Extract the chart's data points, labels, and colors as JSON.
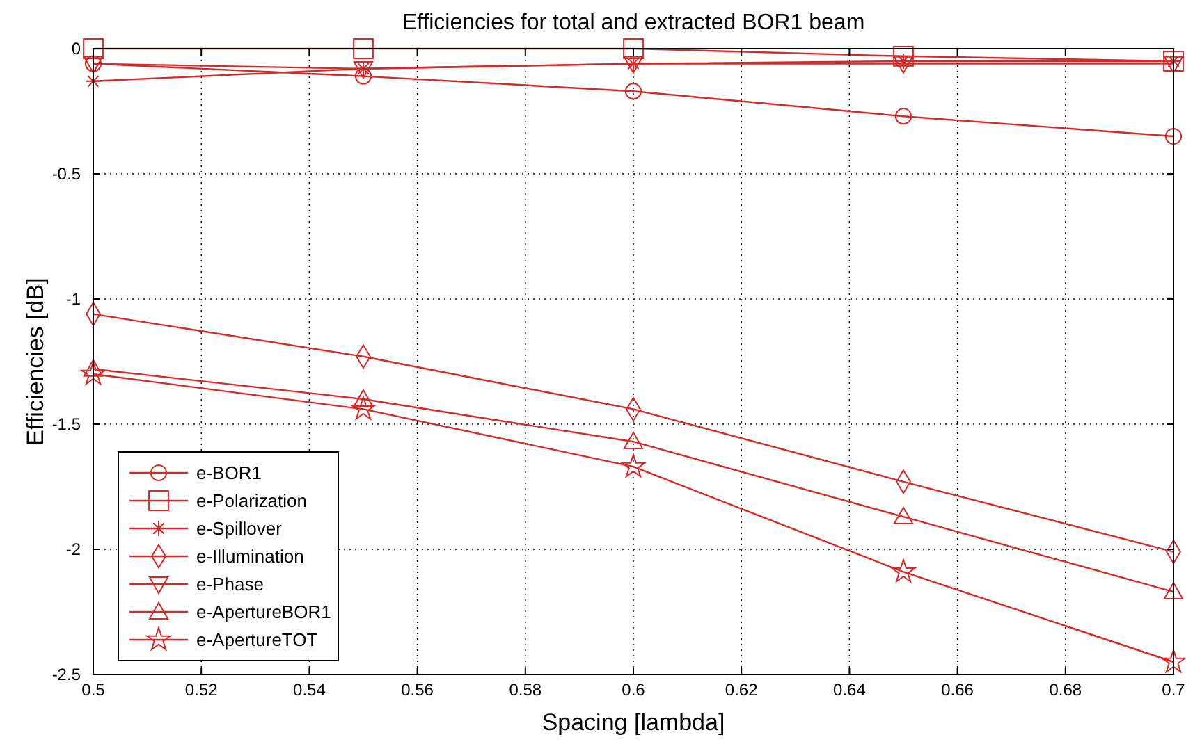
{
  "chart_data": {
    "type": "line",
    "title": "Efficiencies for total and extracted BOR1 beam",
    "xlabel": "Spacing [lambda]",
    "ylabel": "Efficiencies [dB]",
    "x": [
      0.5,
      0.55,
      0.6,
      0.65,
      0.7
    ],
    "series": [
      {
        "name": "e-BOR1",
        "color": "#d42a2a",
        "marker": "circle",
        "values": [
          -0.06,
          -0.11,
          -0.17,
          -0.27,
          -0.35
        ]
      },
      {
        "name": "e-Polarization",
        "color": "#d42a2a",
        "marker": "square",
        "values": [
          0,
          0,
          0,
          -0.03,
          -0.05
        ]
      },
      {
        "name": "e-Spillover",
        "color": "#d42a2a",
        "marker": "cross",
        "values": [
          -0.13,
          -0.08,
          -0.06,
          -0.05,
          -0.05
        ]
      },
      {
        "name": "e-Illumination",
        "color": "#d42a2a",
        "marker": "diamond",
        "values": [
          -1.06,
          -1.23,
          -1.44,
          -1.73,
          -2.01
        ]
      },
      {
        "name": "e-Phase",
        "color": "#d42a2a",
        "marker": "triangle-down",
        "values": [
          -0.06,
          -0.08,
          -0.06,
          -0.06,
          -0.06
        ]
      },
      {
        "name": "e-ApertureBOR1",
        "color": "#d42a2a",
        "marker": "triangle",
        "values": [
          -1.28,
          -1.4,
          -1.57,
          -1.87,
          -2.17
        ]
      },
      {
        "name": "e-ApertureTOT",
        "color": "#d42a2a",
        "marker": "star",
        "values": [
          -1.3,
          -1.44,
          -1.67,
          -2.09,
          -2.45
        ]
      }
    ],
    "xlim": [
      0.5,
      0.7
    ],
    "xticks": [
      0.5,
      0.52,
      0.54,
      0.56,
      0.58,
      0.6,
      0.62,
      0.64,
      0.66,
      0.68,
      0.7
    ],
    "ylim": [
      -2.5,
      0
    ],
    "yticks": [
      -2.5,
      -2,
      -1.5,
      -1,
      -0.5,
      0
    ],
    "grid": true,
    "legend": "bottom left",
    "line_style": "solid"
  }
}
